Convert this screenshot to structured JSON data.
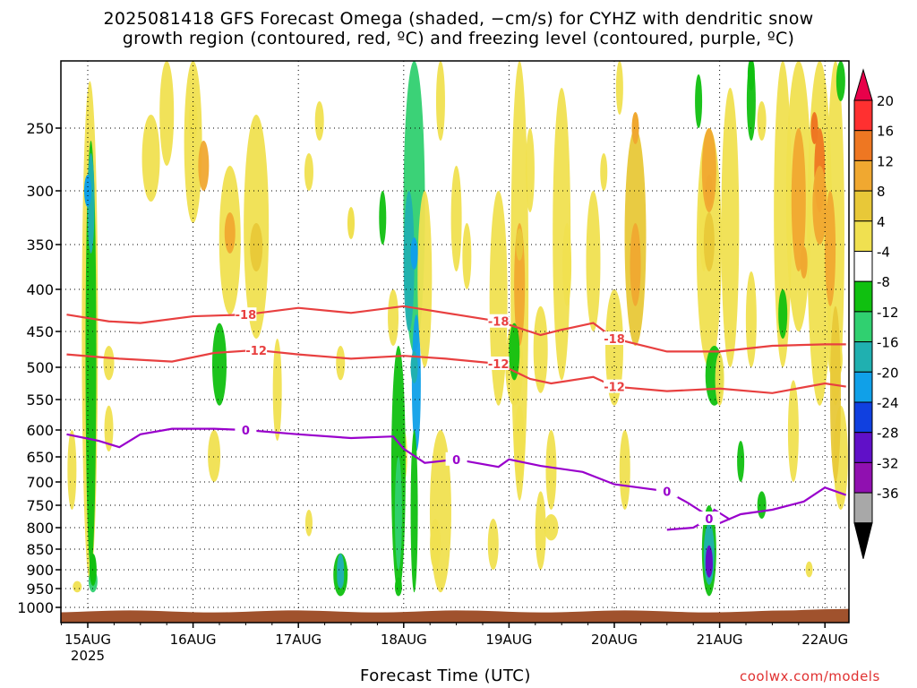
{
  "title_line1": "2025081418 GFS Forecast Omega (shaded, −cm/s) for CYHZ with dendritic snow",
  "title_line2": "growth region (contoured, red, ºC) and freezing level (contoured, purple, ºC)",
  "xaxis_title": "Forecast Time (UTC)",
  "credit": "coolwx.com/models",
  "colors": {
    "ground": "#a0522d",
    "freezing_contour": "#9900cc",
    "dgz_contour": "#e84040"
  },
  "chart_data": {
    "type": "heatmap",
    "title": "2025081418 GFS Forecast Omega (shaded, −cm/s) for CYHZ with dendritic snow growth region (contoured, red, ºC) and freezing level (contoured, purple, ºC)",
    "xlabel": "Forecast Time (UTC)",
    "ylabel": "",
    "y_scale": "pressure (hPa), inverted",
    "grid": true,
    "x_ticks": [
      "15AUG",
      "16AUG",
      "17AUG",
      "18AUG",
      "19AUG",
      "20AUG",
      "21AUG",
      "22AUG"
    ],
    "x_year_label": "2025",
    "y_ticks": [
      250,
      300,
      350,
      400,
      450,
      500,
      550,
      600,
      650,
      700,
      750,
      800,
      850,
      900,
      950,
      1000
    ],
    "x_range_days": [
      -0.2,
      7.2
    ],
    "y_range_hpa": [
      200,
      1030
    ],
    "colorbar": {
      "tick_labels": [
        "20",
        "16",
        "12",
        "8",
        "4",
        "-4",
        "-8",
        "-12",
        "-16",
        "-20",
        "-24",
        "-28",
        "-32",
        "-36"
      ],
      "colors": [
        "#e8004a",
        "#ff3030",
        "#ee7722",
        "#f0a830",
        "#e8c838",
        "#f0e050",
        "#ffffff",
        "#10c010",
        "#30d070",
        "#20b0b0",
        "#10a0e8",
        "#1040e0",
        "#6010c8",
        "#9010b0",
        "#a8a8a8",
        "#000000"
      ]
    },
    "contours": [
      {
        "name": "-18",
        "color": "#e84040",
        "labels": [
          "-18",
          "-18",
          "-18"
        ],
        "x": [
          -0.2,
          0.2,
          0.5,
          1.0,
          1.5,
          2.0,
          2.5,
          3.0,
          3.5,
          3.9,
          4.3,
          4.5,
          4.8,
          5.0,
          5.5,
          6.0,
          6.5,
          7.0,
          7.2
        ],
        "y": [
          430,
          438,
          440,
          432,
          430,
          422,
          428,
          420,
          430,
          438,
          455,
          448,
          440,
          460,
          478,
          478,
          470,
          468,
          468
        ]
      },
      {
        "name": "-12",
        "color": "#e84040",
        "labels": [
          "-12",
          "-12",
          "-12"
        ],
        "x": [
          -0.2,
          0.3,
          0.8,
          1.2,
          1.6,
          2.0,
          2.5,
          3.0,
          3.4,
          3.9,
          4.2,
          4.4,
          4.8,
          5.0,
          5.5,
          6.0,
          6.5,
          7.0,
          7.2
        ],
        "y": [
          482,
          488,
          492,
          480,
          476,
          482,
          488,
          484,
          488,
          495,
          518,
          525,
          515,
          530,
          537,
          533,
          540,
          525,
          530
        ]
      },
      {
        "name": "0",
        "color": "#9900cc",
        "labels": [
          "0",
          "0",
          "0"
        ],
        "x": [
          -0.2,
          0.1,
          0.3,
          0.5,
          0.8,
          1.2,
          1.5,
          2.0,
          2.5,
          2.9,
          3.0,
          3.2,
          3.5,
          3.9,
          4.0,
          4.3,
          4.7,
          5.0,
          5.5,
          5.7,
          6.0,
          6.2,
          6.5,
          6.8,
          7.0,
          7.2
        ],
        "y": [
          608,
          620,
          632,
          608,
          598,
          598,
          600,
          608,
          615,
          612,
          635,
          662,
          655,
          670,
          655,
          668,
          680,
          705,
          720,
          745,
          790,
          770,
          760,
          742,
          712,
          728
        ]
      },
      {
        "name": "0",
        "color": "#9900cc",
        "labels": [
          "0"
        ],
        "x": [
          5.5,
          5.75,
          5.9,
          5.95,
          6.1
        ],
        "y": [
          805,
          800,
          780,
          760,
          782
        ]
      }
    ],
    "omega_cells": [
      {
        "x": 0.0,
        "y": 300,
        "value": -20
      },
      {
        "x": 0.05,
        "y": 900,
        "value": -8
      },
      {
        "x": 2.5,
        "y": 330,
        "value": 4
      },
      {
        "x": 3.1,
        "y": 360,
        "value": -20
      },
      {
        "x": 3.1,
        "y": 500,
        "value": -16
      },
      {
        "x": 2.4,
        "y": 900,
        "value": -16
      },
      {
        "x": 4.1,
        "y": 350,
        "value": 8
      },
      {
        "x": 5.2,
        "y": 250,
        "value": 12
      },
      {
        "x": 5.9,
        "y": 300,
        "value": 12
      },
      {
        "x": 5.9,
        "y": 880,
        "value": -28
      },
      {
        "x": 6.9,
        "y": 250,
        "value": 16
      },
      {
        "x": 6.8,
        "y": 370,
        "value": 12
      },
      {
        "x": 6.3,
        "y": 210,
        "value": -8
      }
    ]
  }
}
